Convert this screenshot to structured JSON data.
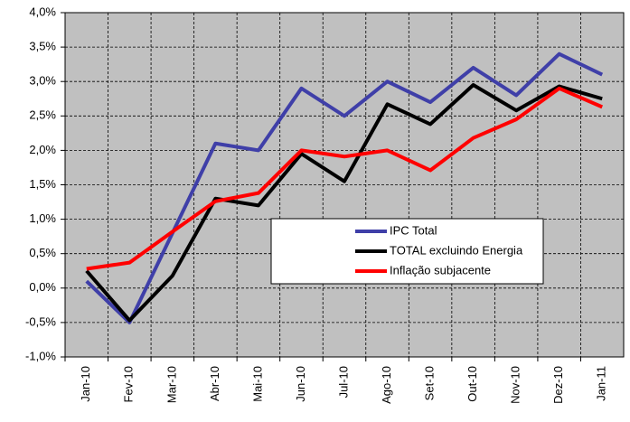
{
  "chart_data": {
    "type": "line",
    "categories": [
      "Jan-10",
      "Fev-10",
      "Mar-10",
      "Abr-10",
      "Mai-10",
      "Jun-10",
      "Jul-10",
      "Ago-10",
      "Set-10",
      "Out-10",
      "Nov-10",
      "Dez-10",
      "Jan-11"
    ],
    "series": [
      {
        "name": "IPC Total",
        "color": "#3f3fa8",
        "values": [
          0.1,
          -0.5,
          0.8,
          2.1,
          2.0,
          2.9,
          2.5,
          3.0,
          2.7,
          3.2,
          2.8,
          3.4,
          3.1
        ]
      },
      {
        "name": "TOTAL excluindo Energia",
        "color": "#000000",
        "values": [
          0.25,
          -0.47,
          0.18,
          1.3,
          1.2,
          1.95,
          1.55,
          2.67,
          2.38,
          2.95,
          2.58,
          2.93,
          2.75
        ]
      },
      {
        "name": "Inflação subjacente",
        "color": "#ff0000",
        "values": [
          0.28,
          0.37,
          0.82,
          1.26,
          1.38,
          2.0,
          1.91,
          2.0,
          1.71,
          2.18,
          2.45,
          2.9,
          2.63
        ]
      }
    ],
    "ylim": [
      -1,
      4
    ],
    "yticks": [
      {
        "value": -1,
        "label": "-1,0%"
      },
      {
        "value": -0.5,
        "label": "-0,5%"
      },
      {
        "value": 0,
        "label": "0,0%"
      },
      {
        "value": 0.5,
        "label": "0,5%"
      },
      {
        "value": 1,
        "label": "1,0%"
      },
      {
        "value": 1.5,
        "label": "1,5%"
      },
      {
        "value": 2,
        "label": "2,0%"
      },
      {
        "value": 2.5,
        "label": "2,5%"
      },
      {
        "value": 3,
        "label": "3,0%"
      },
      {
        "value": 3.5,
        "label": "3,5%"
      },
      {
        "value": 4,
        "label": "4,0%"
      }
    ],
    "grid": true,
    "plot_background": "#c0c0c0"
  }
}
